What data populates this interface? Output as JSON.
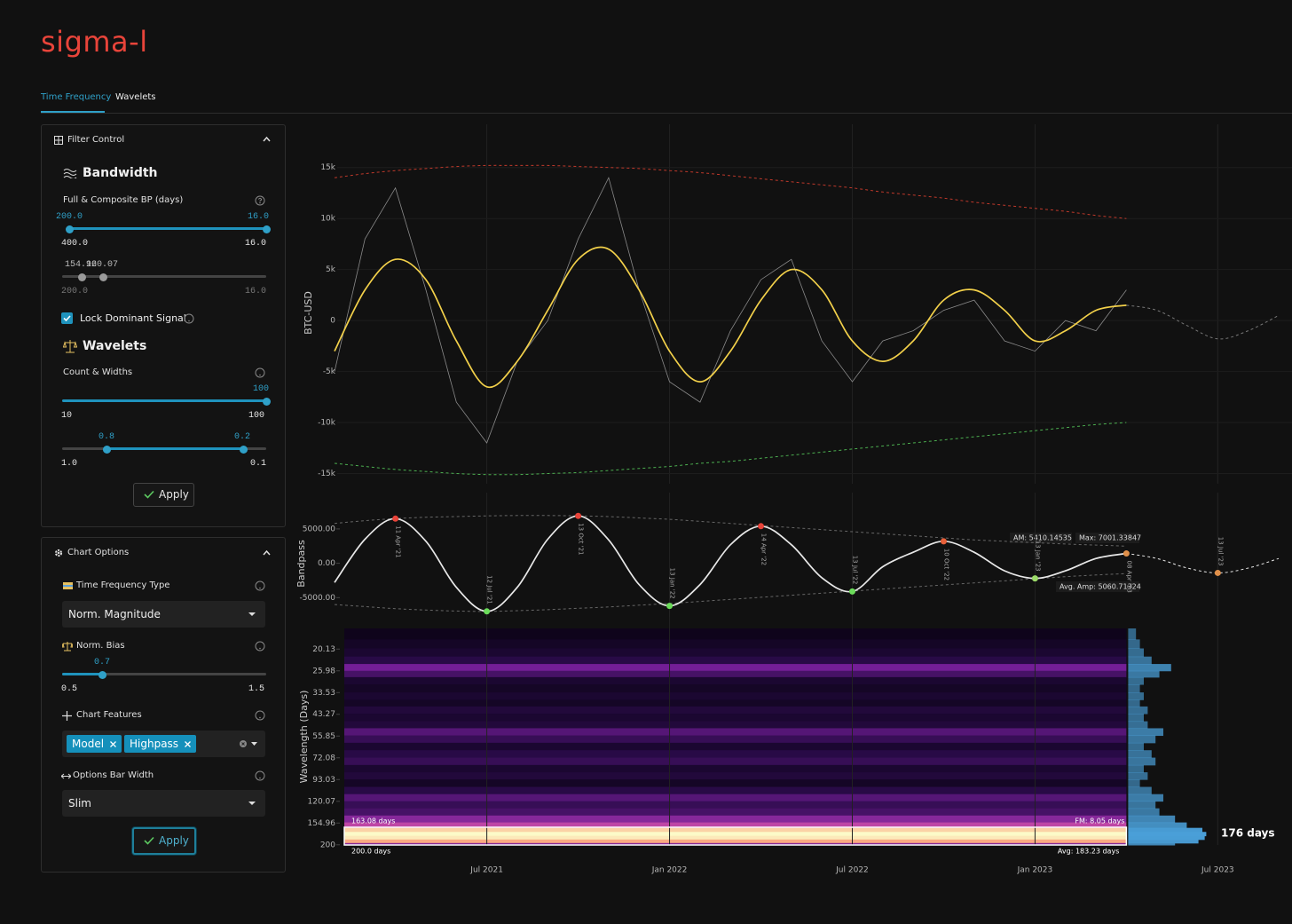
{
  "header": {
    "logo": "sigma-l"
  },
  "tabs": [
    "Time Frequency",
    "Wavelets"
  ],
  "filter_control": {
    "title": "Filter Control",
    "bandwidth": {
      "heading": "Bandwidth",
      "label": "Full & Composite BP (days)",
      "slider_full": {
        "low": "200.0",
        "high": "16.0",
        "min": "400.0",
        "max": "16.0"
      },
      "slider_composite": {
        "low": "154.96",
        "high": "120.07",
        "min": "200.0",
        "max": "16.0"
      },
      "lock": "Lock Dominant Signal"
    },
    "wavelets": {
      "heading": "Wavelets",
      "label": "Count & Widths",
      "slider_count": {
        "high": "100",
        "min": "10",
        "max": "100"
      },
      "slider_widths": {
        "low": "0.8",
        "high": "0.2",
        "min": "1.0",
        "max": "0.1"
      }
    },
    "apply": "Apply"
  },
  "chart_options": {
    "title": "Chart Options",
    "tf_type": {
      "label": "Time Frequency Type",
      "value": "Norm. Magnitude"
    },
    "norm_bias": {
      "label": "Norm. Bias",
      "value": "0.7",
      "min": "0.5",
      "max": "1.5"
    },
    "features": {
      "label": "Chart Features",
      "chips": [
        "Model",
        "Highpass"
      ]
    },
    "bar_width": {
      "label": "Options Bar Width",
      "value": "Slim"
    },
    "apply": "Apply"
  },
  "chart_data": [
    {
      "type": "line",
      "y_label": "BTC-USD",
      "x": [
        "2021-02",
        "2021-03",
        "2021-04",
        "2021-05",
        "2021-06",
        "2021-07",
        "2021-08",
        "2021-09",
        "2021-10",
        "2021-11",
        "2021-12",
        "2022-01",
        "2022-02",
        "2022-03",
        "2022-04",
        "2022-05",
        "2022-06",
        "2022-07",
        "2022-08",
        "2022-09",
        "2022-10",
        "2022-11",
        "2022-12",
        "2023-01",
        "2023-02",
        "2023-03",
        "2023-04",
        "2023-05",
        "2023-06",
        "2023-07",
        "2023-08",
        "2023-09"
      ],
      "xlim": [
        "2021-02",
        "2023-09"
      ],
      "xticks": [
        {
          "value": "2021-07",
          "label": "Jul 2021"
        },
        {
          "value": "2022-01",
          "label": "Jan 2022"
        },
        {
          "value": "2022-07",
          "label": "Jul 2022"
        },
        {
          "value": "2023-01",
          "label": "Jan 2023"
        },
        {
          "value": "2023-07",
          "label": "Jul 2023"
        }
      ],
      "ylim": [
        -16000,
        17500
      ],
      "yticks": [
        {
          "value": -15000,
          "label": "-15k"
        },
        {
          "value": -10000,
          "label": "-10k"
        },
        {
          "value": -5000,
          "label": "-5k"
        },
        0,
        {
          "value": 5000,
          "label": "5k"
        },
        {
          "value": 10000,
          "label": "10k"
        },
        {
          "value": 15000,
          "label": "15k"
        }
      ],
      "grid": true,
      "series": [
        {
          "color": "#c0392b",
          "dash": true,
          "smooth": true,
          "values": [
            14000,
            14400,
            14700,
            14900,
            15100,
            15200,
            15200,
            15200,
            15100,
            15000,
            14900,
            14700,
            14500,
            14200,
            13900,
            13600,
            13300,
            13000,
            12600,
            12300,
            12000,
            11600,
            11300,
            11000,
            10700,
            10300,
            10000,
            null,
            null,
            null,
            null,
            null
          ]
        },
        {
          "color": "#4caf50",
          "dash": true,
          "smooth": true,
          "values": [
            -14000,
            -14300,
            -14600,
            -14800,
            -15000,
            -15100,
            -15100,
            -15000,
            -14900,
            -14700,
            -14500,
            -14300,
            -14000,
            -13800,
            -13500,
            -13200,
            -12900,
            -12600,
            -12300,
            -12000,
            -11700,
            -11400,
            -11100,
            -10800,
            -10500,
            -10200,
            -10000,
            null,
            null,
            null,
            null,
            null
          ]
        },
        {
          "color": "#8a8a8a",
          "dash": false,
          "smooth": false,
          "values": [
            -5000,
            8000,
            13000,
            3000,
            -8000,
            -12000,
            -4000,
            0,
            8000,
            14000,
            3000,
            -6000,
            -8000,
            -1000,
            4000,
            6000,
            -2000,
            -6000,
            -2000,
            -1000,
            1000,
            2000,
            -2000,
            -3000,
            0,
            -1000,
            3000,
            null,
            null,
            null,
            null,
            null
          ]
        },
        {
          "color": "#f2d04a",
          "dash": false,
          "smooth": true,
          "values": [
            -3000,
            3000,
            6000,
            4000,
            -2000,
            -6500,
            -4000,
            1000,
            6000,
            7000,
            3000,
            -3000,
            -6000,
            -3000,
            2000,
            5000,
            3000,
            -2000,
            -4000,
            -2000,
            2000,
            3000,
            1000,
            -2000,
            -1000,
            1000,
            1500,
            null,
            null,
            null,
            null,
            null
          ]
        },
        {
          "color": "#777777",
          "dash": true,
          "smooth": true,
          "values": [
            null,
            null,
            null,
            null,
            null,
            null,
            null,
            null,
            null,
            null,
            null,
            null,
            null,
            null,
            null,
            null,
            null,
            null,
            null,
            null,
            null,
            null,
            null,
            null,
            null,
            null,
            1500,
            1000,
            -500,
            -1800,
            -1000,
            500
          ]
        }
      ]
    },
    {
      "type": "line",
      "y_label": "Bandpass",
      "x": [
        "2021-02",
        "2021-03",
        "2021-04",
        "2021-05",
        "2021-06",
        "2021-07",
        "2021-08",
        "2021-09",
        "2021-10",
        "2021-11",
        "2021-12",
        "2022-01",
        "2022-02",
        "2022-03",
        "2022-04",
        "2022-05",
        "2022-06",
        "2022-07",
        "2022-08",
        "2022-09",
        "2022-10",
        "2022-11",
        "2022-12",
        "2023-01",
        "2023-02",
        "2023-03",
        "2023-04",
        "2023-05",
        "2023-06",
        "2023-07",
        "2023-08",
        "2023-09"
      ],
      "xlim": [
        "2021-02",
        "2023-09"
      ],
      "ylim": [
        -7800,
        7700
      ],
      "yticks": [
        {
          "value": -5000,
          "label": "-5000.00"
        },
        {
          "value": 0,
          "label": "0.00"
        },
        {
          "value": 5000,
          "label": "5000.00"
        }
      ],
      "grid": false,
      "series": [
        {
          "color": "#666666",
          "dash": true,
          "smooth": true,
          "values": [
            5800,
            6200,
            6500,
            6700,
            6800,
            6900,
            6950,
            6950,
            6900,
            6800,
            6600,
            6400,
            6100,
            5800,
            5500,
            5200,
            4900,
            4600,
            4300,
            4000,
            3700,
            3400,
            3200,
            3000,
            2800,
            2650,
            2500,
            null,
            null,
            null,
            null,
            null
          ]
        },
        {
          "color": "#666666",
          "dash": true,
          "smooth": true,
          "values": [
            -6000,
            -6300,
            -6600,
            -6800,
            -6950,
            -7000,
            -6900,
            -6750,
            -6550,
            -6350,
            -6100,
            -5850,
            -5550,
            -5250,
            -4950,
            -4650,
            -4350,
            -4050,
            -3750,
            -3450,
            -3150,
            -2850,
            -2550,
            -2250,
            -1950,
            -1700,
            -1500,
            null,
            null,
            null,
            null,
            null
          ]
        },
        {
          "color": "#e8e8e8",
          "dash": false,
          "smooth": true,
          "values": [
            -2800,
            3500,
            6500,
            3200,
            -3500,
            -7000,
            -3500,
            3500,
            6900,
            3400,
            -3100,
            -6200,
            -3100,
            2700,
            5400,
            2700,
            -2100,
            -4100,
            -500,
            1600,
            3200,
            1600,
            -1100,
            -2200,
            -1100,
            700,
            1430,
            null,
            null,
            null,
            null,
            null
          ]
        },
        {
          "color": "#e8e8e8",
          "dash": true,
          "smooth": true,
          "values": [
            null,
            null,
            null,
            null,
            null,
            null,
            null,
            null,
            null,
            null,
            null,
            null,
            null,
            null,
            null,
            null,
            null,
            null,
            null,
            null,
            null,
            null,
            null,
            null,
            null,
            null,
            1430,
            700,
            -700,
            -1400,
            -700,
            700
          ]
        }
      ],
      "markers": [
        {
          "x": "2021-04",
          "value": 6500,
          "label": "11 Apr '21",
          "color": "#e8443a"
        },
        {
          "x": "2021-07",
          "value": -7000,
          "label": "12 Jul '21",
          "color": "#6bdc5a"
        },
        {
          "x": "2021-10",
          "value": 6900,
          "label": "13 Oct '21",
          "color": "#e8443a"
        },
        {
          "x": "2022-01",
          "value": -6200,
          "label": "13 Jan '22",
          "color": "#6bdc5a"
        },
        {
          "x": "2022-04",
          "value": 5400,
          "label": "14 Apr '22",
          "color": "#e8443a"
        },
        {
          "x": "2022-07",
          "value": -4100,
          "label": "13 Jul '22",
          "color": "#6bdc5a"
        },
        {
          "x": "2022-10",
          "value": 3200,
          "label": "10 Oct '22",
          "color": "#e8603a"
        },
        {
          "x": "2023-01",
          "value": -2200,
          "label": "13 Jan '23",
          "color": "#9ddc6a"
        },
        {
          "x": "2023-04",
          "value": 1430,
          "label": "08 Apr '23",
          "color": "#e0904a"
        },
        {
          "x": "2023-07",
          "value": -1400,
          "label": "13 Jul '23",
          "color": "#e0904a"
        }
      ],
      "annotations": [
        "AM: 5410.14535",
        "Max: 7001.33847",
        "Avg. Amp: 5060.71324"
      ]
    },
    {
      "type": "heatmap",
      "y_label": "Wavelength (Days)",
      "log_y": true,
      "ylim": [
        15.8,
        200.5
      ],
      "yticks": [
        20.13,
        25.98,
        33.53,
        43.27,
        55.85,
        72.08,
        93.03,
        120.07,
        154.96,
        200
      ],
      "rows": [
        17,
        19,
        21,
        23,
        25,
        27,
        29,
        32,
        35,
        38,
        41,
        45,
        49,
        53,
        58,
        63,
        69,
        75,
        82,
        89,
        97,
        106,
        115,
        125,
        136,
        148,
        160,
        168,
        176,
        184,
        192,
        200
      ],
      "power": [
        0.1,
        0.15,
        0.2,
        0.3,
        0.55,
        0.4,
        0.2,
        0.15,
        0.2,
        0.15,
        0.25,
        0.2,
        0.25,
        0.45,
        0.35,
        0.2,
        0.3,
        0.35,
        0.2,
        0.25,
        0.15,
        0.3,
        0.45,
        0.35,
        0.4,
        0.6,
        0.75,
        0.95,
        1.0,
        0.98,
        0.9,
        0.6
      ],
      "bar_color": "#4a9fd8",
      "peak_label": "176 days",
      "annotations": [
        "163.08 days",
        "200.0 days",
        "FM: 8.05 days",
        "Avg: 183.23 days"
      ]
    }
  ]
}
